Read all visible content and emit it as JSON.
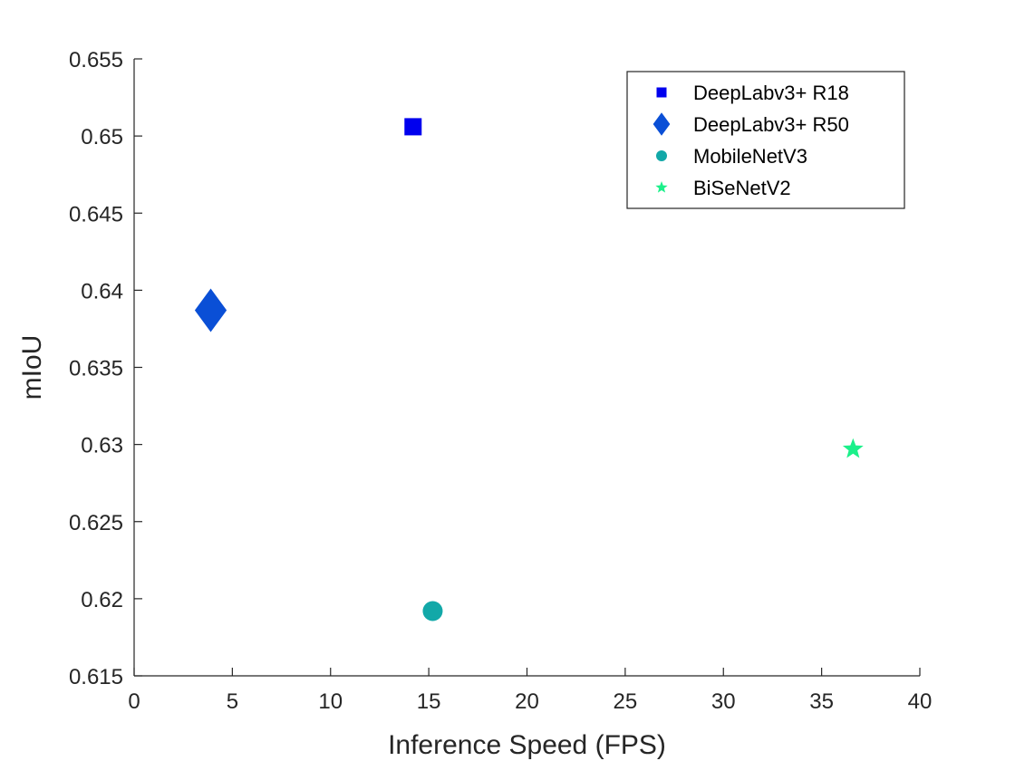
{
  "chart_data": {
    "type": "scatter",
    "title": "",
    "xlabel": "Inference Speed (FPS)",
    "ylabel": "mIoU",
    "xlim": [
      0,
      40
    ],
    "ylim": [
      0.615,
      0.655
    ],
    "xticks": [
      "0",
      "5",
      "10",
      "15",
      "20",
      "25",
      "30",
      "35",
      "40"
    ],
    "yticks": [
      "0.615",
      "0.62",
      "0.625",
      "0.63",
      "0.635",
      "0.64",
      "0.645",
      "0.65",
      "0.655"
    ],
    "grid": false,
    "legend_position": "top-right",
    "series": [
      {
        "name": "DeepLabv3+ R18",
        "marker": "square",
        "color": "#0000ee",
        "x": [
          14.2
        ],
        "y": [
          0.6506
        ]
      },
      {
        "name": "DeepLabv3+ R50",
        "marker": "diamond",
        "color": "#0a4fd6",
        "x": [
          3.9
        ],
        "y": [
          0.6387
        ]
      },
      {
        "name": "MobileNetV3",
        "marker": "circle",
        "color": "#12a8a8",
        "x": [
          15.2
        ],
        "y": [
          0.6192
        ]
      },
      {
        "name": "BiSeNetV2",
        "marker": "star",
        "color": "#1bf08a",
        "x": [
          36.6
        ],
        "y": [
          0.6297
        ]
      }
    ]
  }
}
